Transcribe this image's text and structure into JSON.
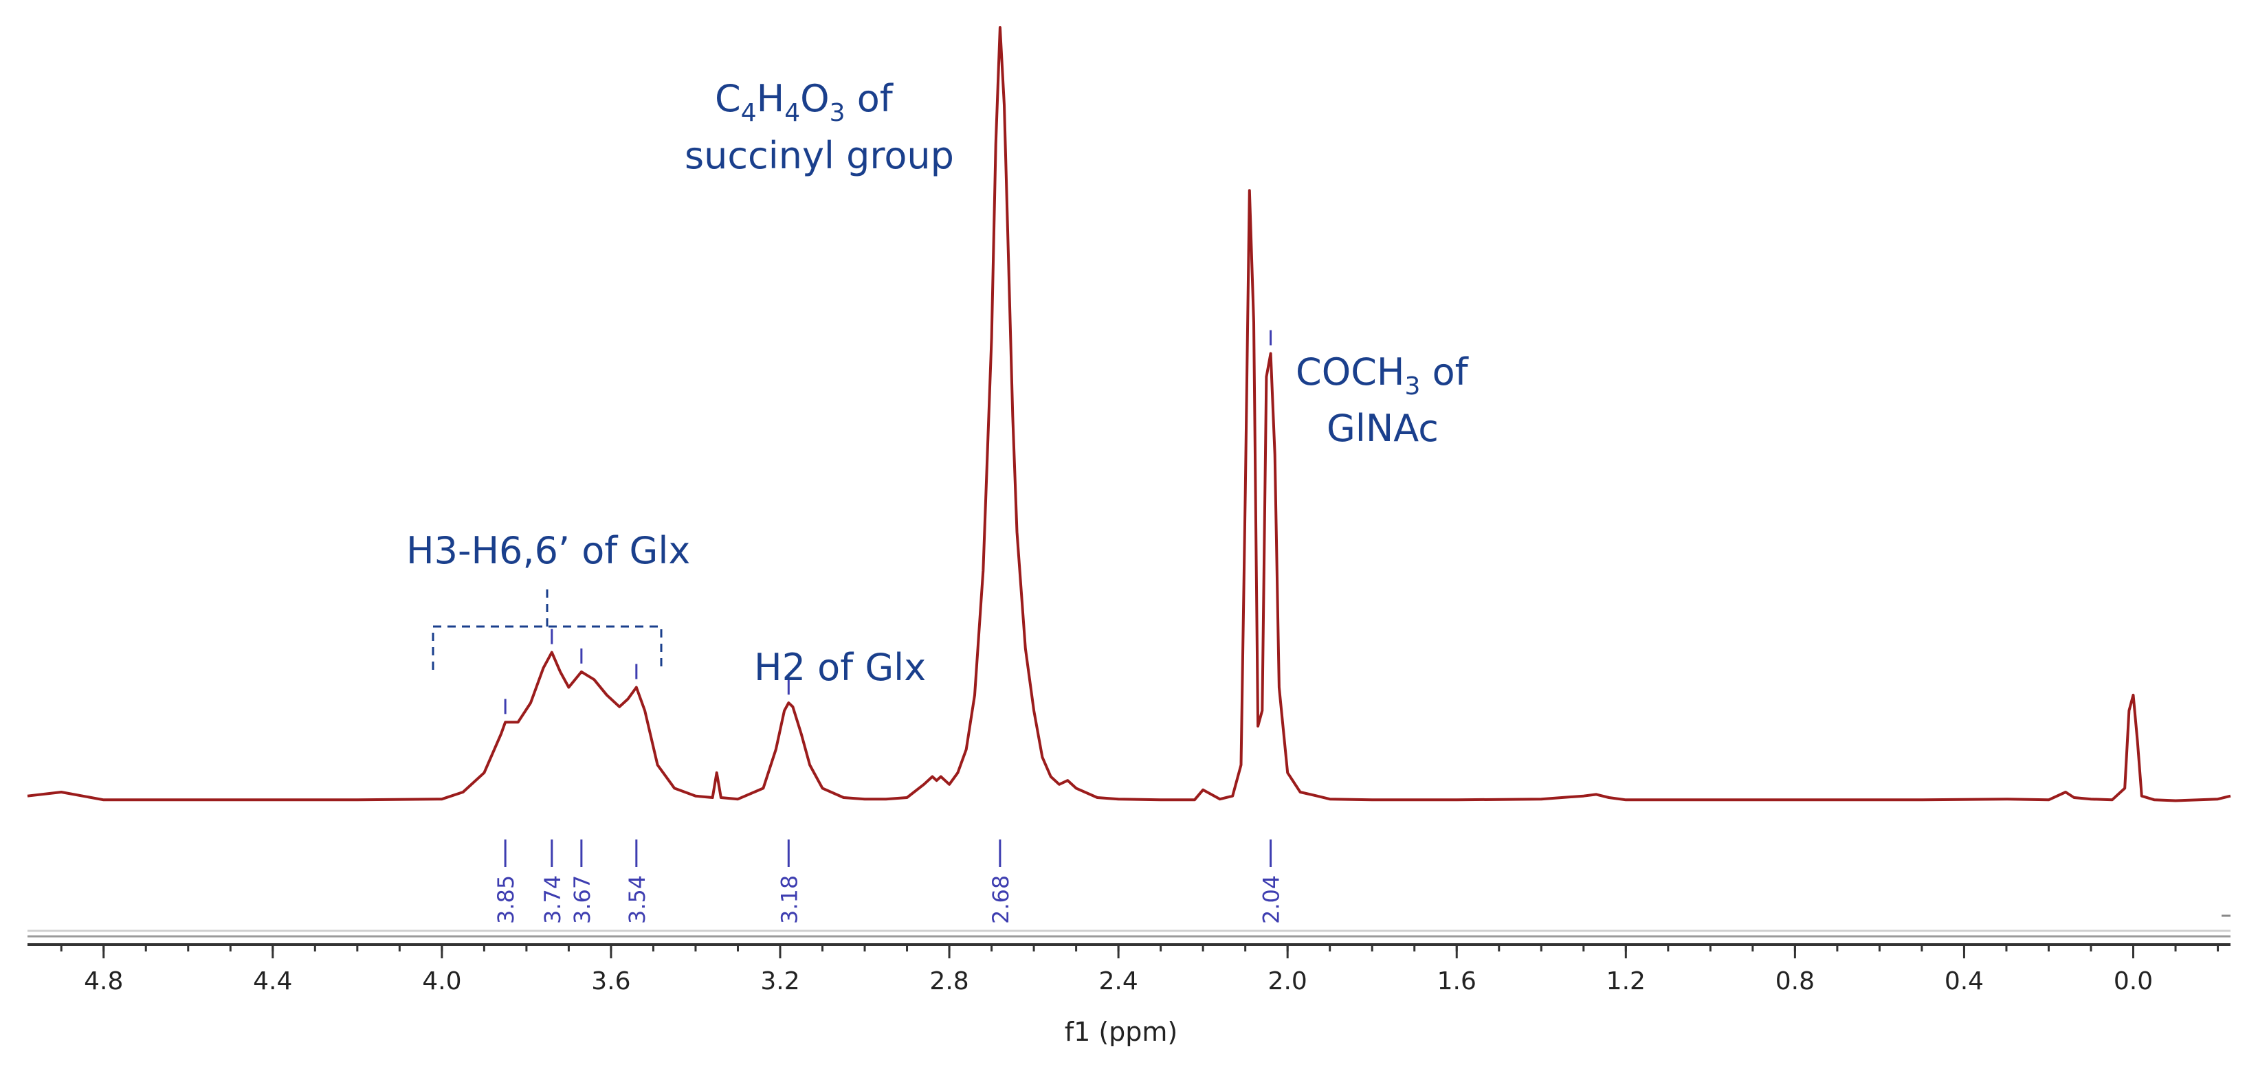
{
  "chart_data": {
    "type": "line",
    "xlabel": "f1 (ppm)",
    "xlim": [
      4.98,
      -0.23
    ],
    "x_reversed": true,
    "x_ticks": [
      "4.8",
      "4.4",
      "4.0",
      "3.6",
      "3.2",
      "2.8",
      "2.4",
      "2.0",
      "1.6",
      "1.2",
      "0.8",
      "0.4",
      "0.0"
    ],
    "x_tick_values": [
      4.8,
      4.4,
      4.0,
      3.6,
      3.2,
      2.8,
      2.4,
      2.0,
      1.6,
      1.2,
      0.8,
      0.4,
      0.0
    ],
    "series": [
      {
        "color": "#9b1c1c",
        "x": [
          4.98,
          4.9,
          4.8,
          4.5,
          4.2,
          4.0,
          3.95,
          3.9,
          3.86,
          3.85,
          3.82,
          3.79,
          3.76,
          3.74,
          3.72,
          3.7,
          3.67,
          3.64,
          3.61,
          3.58,
          3.56,
          3.54,
          3.52,
          3.49,
          3.45,
          3.4,
          3.36,
          3.35,
          3.34,
          3.3,
          3.24,
          3.21,
          3.19,
          3.18,
          3.17,
          3.15,
          3.13,
          3.1,
          3.05,
          3.0,
          2.95,
          2.9,
          2.86,
          2.84,
          2.83,
          2.82,
          2.8,
          2.78,
          2.76,
          2.74,
          2.72,
          2.7,
          2.69,
          2.68,
          2.67,
          2.66,
          2.65,
          2.64,
          2.62,
          2.6,
          2.58,
          2.56,
          2.54,
          2.52,
          2.5,
          2.45,
          2.4,
          2.3,
          2.22,
          2.2,
          2.16,
          2.13,
          2.11,
          2.1,
          2.09,
          2.08,
          2.07,
          2.06,
          2.05,
          2.04,
          2.03,
          2.02,
          2.0,
          1.97,
          1.93,
          1.9,
          1.8,
          1.6,
          1.4,
          1.3,
          1.27,
          1.24,
          1.2,
          1.0,
          0.8,
          0.5,
          0.3,
          0.2,
          0.16,
          0.14,
          0.1,
          0.05,
          0.02,
          0.01,
          0.0,
          -0.01,
          -0.02,
          -0.05,
          -0.1,
          -0.2,
          -0.23
        ],
        "y": [
          1.0,
          1.5,
          0.5,
          0.5,
          0.5,
          0.6,
          1.5,
          4.0,
          9.0,
          10.5,
          10.5,
          13.0,
          17.5,
          19.5,
          17.0,
          15.0,
          17.0,
          16.0,
          14.0,
          12.5,
          13.5,
          15.0,
          12.0,
          5.0,
          2.0,
          1.0,
          0.8,
          4.0,
          0.8,
          0.6,
          2.0,
          7.0,
          12.0,
          13.0,
          12.5,
          9.0,
          5.0,
          2.0,
          0.8,
          0.6,
          0.6,
          0.8,
          2.5,
          3.5,
          3.0,
          3.5,
          2.5,
          4.0,
          7.0,
          14.0,
          30.0,
          60.0,
          85.0,
          100.0,
          90.0,
          70.0,
          50.0,
          35.0,
          20.0,
          12.0,
          6.0,
          3.5,
          2.5,
          3.0,
          2.0,
          0.8,
          0.6,
          0.5,
          0.5,
          1.8,
          0.6,
          1.0,
          5.0,
          40.0,
          79.0,
          62.0,
          10.0,
          12.0,
          55.0,
          58.0,
          45.0,
          15.0,
          4.0,
          1.5,
          1.0,
          0.6,
          0.5,
          0.5,
          0.6,
          1.0,
          1.2,
          0.8,
          0.5,
          0.5,
          0.5,
          0.5,
          0.6,
          0.5,
          1.5,
          0.8,
          0.6,
          0.5,
          2.0,
          12.0,
          14.0,
          8.0,
          1.0,
          0.5,
          0.4,
          0.6,
          1.0
        ]
      }
    ],
    "peak_labels": [
      "3.85",
      "3.74",
      "3.67",
      "3.54",
      "3.18",
      "2.68",
      "2.04"
    ],
    "peak_label_values": [
      3.85,
      3.74,
      3.67,
      3.54,
      3.18,
      2.68,
      2.04
    ],
    "annotations": {
      "succinyl_line1_parts": [
        "C",
        "4",
        "H",
        "4",
        "O",
        "3",
        " of"
      ],
      "succinyl_line2": "succinyl group",
      "coch3_line1_parts": [
        "COCH",
        "3",
        " of"
      ],
      "coch3_line2": "GlNAc",
      "h3h6": "H3-H6,6’ of  Glx",
      "h2": "H2 of  Glx"
    }
  }
}
